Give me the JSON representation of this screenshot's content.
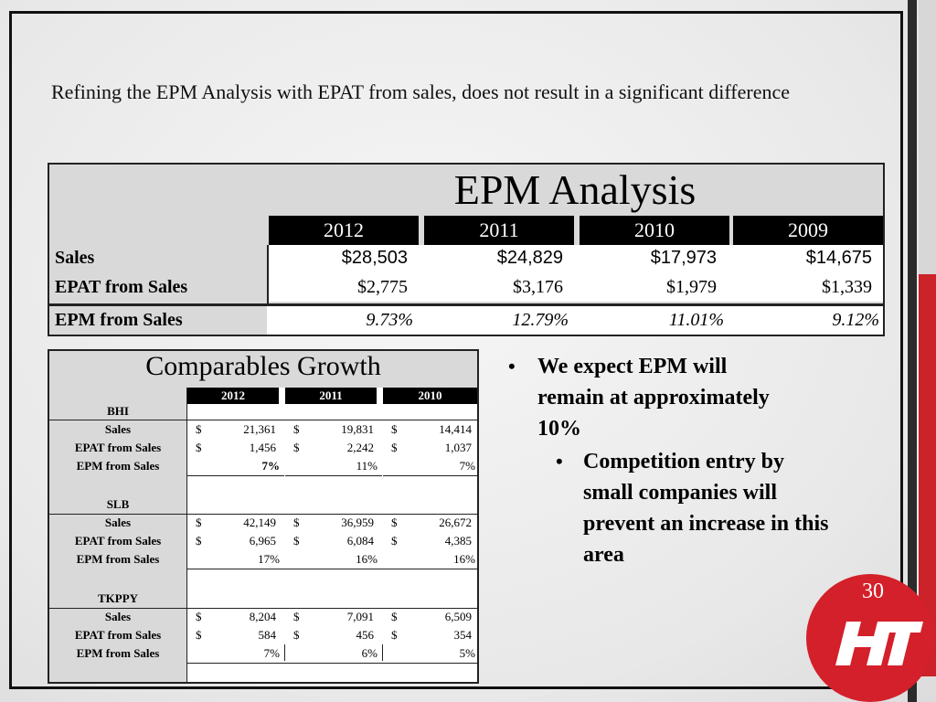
{
  "title": "Refining the EPM Analysis with EPAT from sales, does not result in a significant difference",
  "epm_table": {
    "heading": "EPM Analysis",
    "years": [
      "2012",
      "2011",
      "2010",
      "2009"
    ],
    "rows": [
      {
        "label": "Sales",
        "values": [
          "$28,503",
          "$24,829",
          "$17,973",
          "$14,675"
        ]
      },
      {
        "label": "EPAT from Sales",
        "values": [
          "$2,775",
          "$3,176",
          "$1,979",
          "$1,339"
        ]
      },
      {
        "label": "EPM from Sales",
        "values": [
          "9.73%",
          "12.79%",
          "11.01%",
          "9.12%"
        ]
      }
    ]
  },
  "comparables": {
    "heading": "Comparables Growth",
    "years": [
      "2012",
      "2011",
      "2010"
    ],
    "companies": [
      {
        "name": "BHI",
        "rows": [
          {
            "label": "Sales",
            "cur": [
              "$",
              "$",
              "$"
            ],
            "values": [
              "21,361",
              "19,831",
              "14,414"
            ]
          },
          {
            "label": "EPAT from Sales",
            "cur": [
              "$",
              "$",
              "$"
            ],
            "values": [
              "1,456",
              "2,242",
              "1,037"
            ]
          },
          {
            "label": "EPM from Sales",
            "cur": [
              "",
              "",
              ""
            ],
            "values": [
              "7%",
              "11%",
              "7%"
            ]
          }
        ]
      },
      {
        "name": "SLB",
        "rows": [
          {
            "label": "Sales",
            "cur": [
              "$",
              "$",
              "$"
            ],
            "values": [
              "42,149",
              "36,959",
              "26,672"
            ]
          },
          {
            "label": "EPAT from Sales",
            "cur": [
              "$",
              "$",
              "$"
            ],
            "values": [
              "6,965",
              "6,084",
              "4,385"
            ]
          },
          {
            "label": "EPM from Sales",
            "cur": [
              "",
              "",
              ""
            ],
            "values": [
              "17%",
              "16%",
              "16%"
            ]
          }
        ]
      },
      {
        "name": "TKPPY",
        "rows": [
          {
            "label": "Sales",
            "cur": [
              "$",
              "$",
              "$"
            ],
            "values": [
              "8,204",
              "7,091",
              "6,509"
            ]
          },
          {
            "label": "EPAT from Sales",
            "cur": [
              "$",
              "$",
              "$"
            ],
            "values": [
              "584",
              "456",
              "354"
            ]
          },
          {
            "label": "EPM from Sales",
            "cur": [
              "",
              "",
              ""
            ],
            "values": [
              "7%",
              "6%",
              "5%"
            ]
          }
        ]
      }
    ]
  },
  "bullets": {
    "main": "We expect EPM will remain at approximately 10%",
    "sub": "Competition entry by small companies will prevent an increase in this area"
  },
  "page_number": "30",
  "colors": {
    "accent_red": "#d3202a",
    "header_black": "#000000",
    "panel_grey": "#d9d9d9"
  },
  "logo_icon": "ht-logo-icon"
}
